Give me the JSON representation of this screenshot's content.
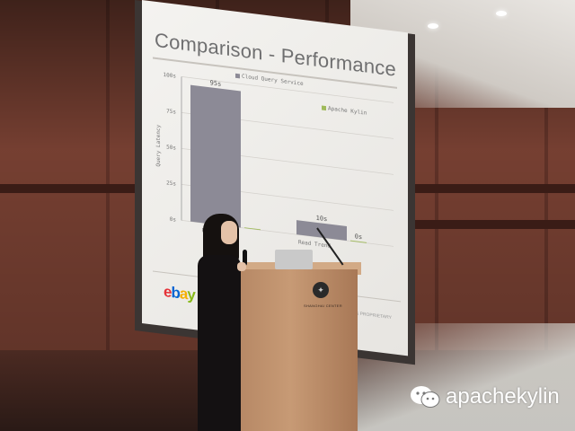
{
  "slide": {
    "title": "Comparison - Performance",
    "legend": [
      "Cloud Query Service",
      "Apache Kylin"
    ],
    "footer_note": "CONFIDENTIAL & PROPRIETARY"
  },
  "chart_data": {
    "type": "bar",
    "title": "Comparison - Performance",
    "ylabel": "Query Latency",
    "ylim": [
      0,
      100
    ],
    "yticks": [
      "0s",
      "25s",
      "50s",
      "75s",
      "100s"
    ],
    "categories": [
      "Read",
      "Read Trend"
    ],
    "series": [
      {
        "name": "Cloud Query Service",
        "values": [
          95,
          10
        ],
        "labels": [
          "95s",
          "10s"
        ],
        "color": "#8c8a96"
      },
      {
        "name": "Apache Kylin",
        "values": [
          0.5,
          0.5
        ],
        "labels": [
          "",
          "0s"
        ],
        "color": "#9fba5a"
      }
    ]
  },
  "brand": {
    "name": "ebay",
    "colors": [
      "#e53238",
      "#0064d2",
      "#f5af02",
      "#86b817"
    ]
  },
  "podium": {
    "logo_icon": "podium-emblem-icon",
    "text": "SHANGHAI CENTER"
  },
  "watermark": {
    "text": "apachekylin",
    "icon": "wechat-icon"
  }
}
